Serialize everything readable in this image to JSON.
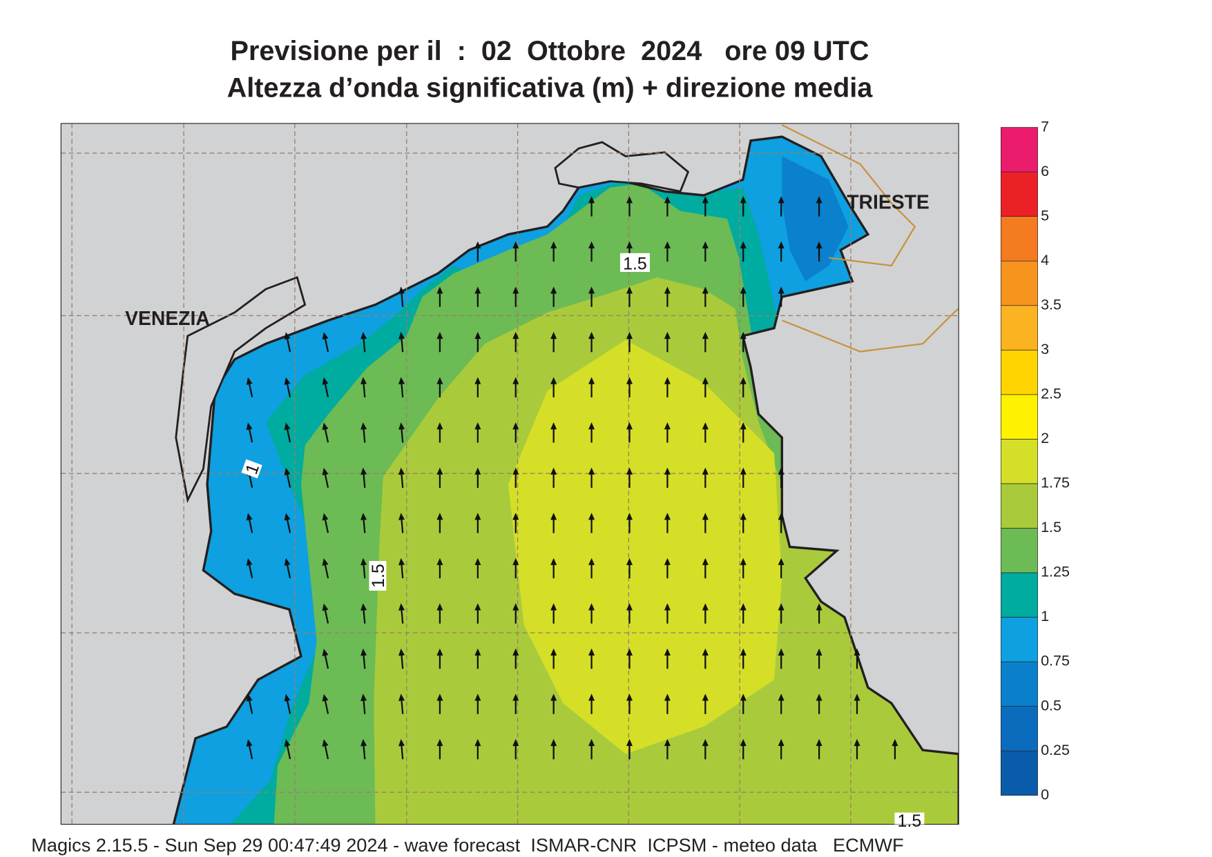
{
  "header": {
    "title_line1": "Previsione per il  :  02  Ottobre  2024   ore 09 UTC",
    "title_line2": "Altezza d’onda significativa (m) + direzione media"
  },
  "map": {
    "place_labels": [
      "VENEZIA",
      "TRIESTE"
    ],
    "contour_labels": [
      1.5,
      1.5,
      1,
      1.5
    ]
  },
  "colorbar": {
    "levels": [
      0,
      0.25,
      0.5,
      0.75,
      1,
      1.25,
      1.5,
      1.75,
      2,
      2.5,
      3,
      3.5,
      4,
      5,
      6,
      7
    ],
    "colors": [
      "#0a5caa",
      "#0b6cbd",
      "#0a80cc",
      "#0ea0e0",
      "#00aba0",
      "#6cbb55",
      "#a9cb3b",
      "#d5df27",
      "#fff200",
      "#ffd400",
      "#fbb322",
      "#f7941d",
      "#f47b20",
      "#ec2127",
      "#ec1c6c"
    ]
  },
  "footer": "Magics 2.15.5 - Sun Sep 29 00:47:49 2024 - wave forecast  ISMAR-CNR  ICPSM - meteo data   ECMWF"
}
